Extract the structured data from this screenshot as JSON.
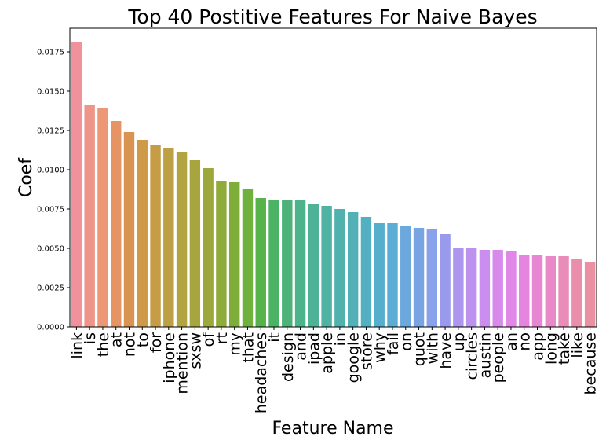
{
  "chart_data": {
    "type": "bar",
    "title": "Top 40 Postitive Features For Naive Bayes",
    "xlabel": "Feature Name",
    "ylabel": "Coef",
    "ylim": [
      0,
      0.019
    ],
    "yticks": [
      "0.0000",
      "0.0025",
      "0.0050",
      "0.0075",
      "0.0100",
      "0.0125",
      "0.0150",
      "0.0175"
    ],
    "grid": false,
    "categories": [
      "link",
      "is",
      "the",
      "at",
      "not",
      "to",
      "for",
      "iphone",
      "mention",
      "sxsw",
      "of",
      "rt",
      "my",
      "that",
      "headaches",
      "it",
      "design",
      "and",
      "ipad",
      "apple",
      "in",
      "google",
      "store",
      "why",
      "fail",
      "on",
      "quot",
      "with",
      "have",
      "up",
      "circles",
      "austin",
      "people",
      "an",
      "no",
      "app",
      "long",
      "take",
      "like",
      "because"
    ],
    "values": [
      0.0181,
      0.0141,
      0.0139,
      0.0131,
      0.0124,
      0.0119,
      0.0116,
      0.0114,
      0.0111,
      0.0106,
      0.0101,
      0.0093,
      0.0092,
      0.0088,
      0.0082,
      0.0081,
      0.0081,
      0.0081,
      0.0078,
      0.0077,
      0.0075,
      0.0073,
      0.007,
      0.0066,
      0.0066,
      0.0064,
      0.0063,
      0.0062,
      0.0059,
      0.005,
      0.005,
      0.0049,
      0.0049,
      0.0048,
      0.0046,
      0.0046,
      0.0045,
      0.0045,
      0.0043,
      0.0041
    ],
    "colors": [
      "#f0919b",
      "#ee9488",
      "#ec9876",
      "#e69463",
      "#d99452",
      "#cf9a48",
      "#c69d46",
      "#bca043",
      "#b2a440",
      "#a7a53d",
      "#9ca83b",
      "#8fab3a",
      "#7fad3a",
      "#6eb13c",
      "#56b249",
      "#4cb264",
      "#4cb27a",
      "#4db38a",
      "#4eb297",
      "#4fb2a3",
      "#50b1ad",
      "#52b1b7",
      "#53b0c2",
      "#55afcc",
      "#5badd5",
      "#6aa8de",
      "#78a4e3",
      "#89a0ea",
      "#9a9aec",
      "#ad97ee",
      "#bc92ee",
      "#ca8eee",
      "#d78aec",
      "#e087e8",
      "#e585df",
      "#e787d4",
      "#e98ac8",
      "#ea8cba",
      "#eb8eac",
      "#eb8fa2"
    ]
  }
}
